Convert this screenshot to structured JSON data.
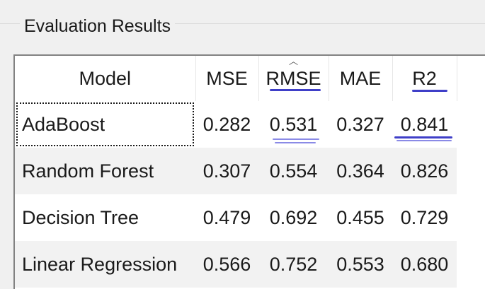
{
  "window": {
    "group_title": "Evaluation Results"
  },
  "table": {
    "columns": [
      "Model",
      "MSE",
      "RMSE",
      "MAE",
      "R2"
    ],
    "sorted_column": "RMSE",
    "selected_row": 0,
    "rows": [
      {
        "model": "AdaBoost",
        "mse": "0.282",
        "rmse": "0.531",
        "mae": "0.327",
        "r2": "0.841"
      },
      {
        "model": "Random Forest",
        "mse": "0.307",
        "rmse": "0.554",
        "mae": "0.364",
        "r2": "0.826"
      },
      {
        "model": "Decision Tree",
        "mse": "0.479",
        "rmse": "0.692",
        "mae": "0.455",
        "r2": "0.729"
      },
      {
        "model": "Linear Regression",
        "mse": "0.566",
        "rmse": "0.752",
        "mae": "0.553",
        "r2": "0.680"
      }
    ]
  },
  "colors": {
    "pen_annotation": "#3f3fc8",
    "row_alt": "#f2f2f2",
    "background": "#f0f0f0"
  }
}
